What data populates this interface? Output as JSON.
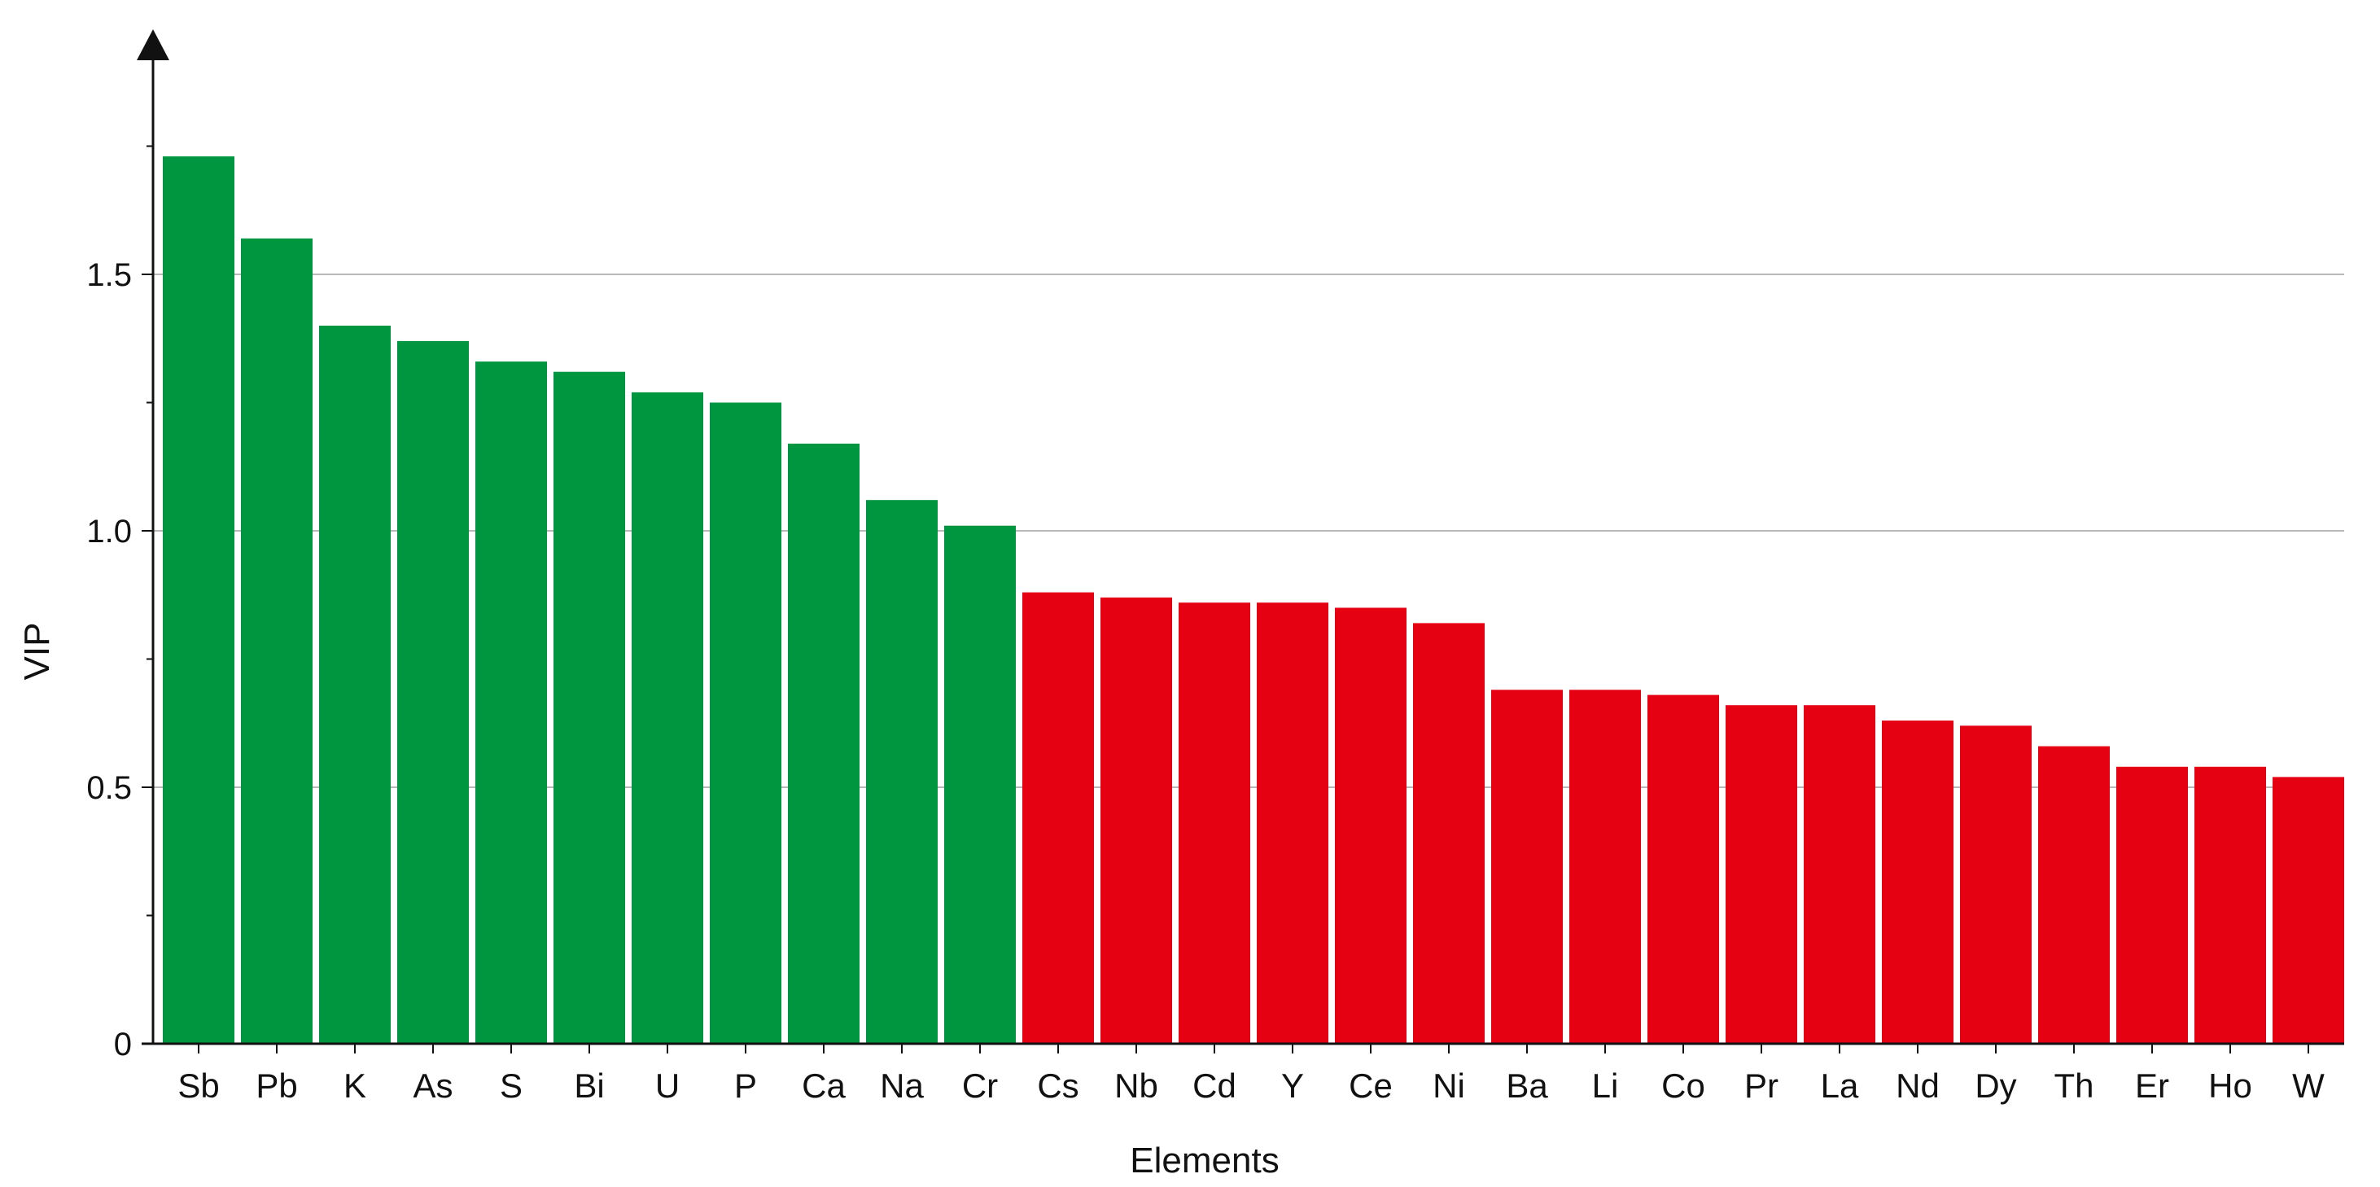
{
  "chart_data": {
    "type": "bar",
    "categories": [
      "Sb",
      "Pb",
      "K",
      "As",
      "S",
      "Bi",
      "U",
      "P",
      "Ca",
      "Na",
      "Cr",
      "Cs",
      "Nb",
      "Cd",
      "Y",
      "Ce",
      "Ni",
      "Ba",
      "Li",
      "Co",
      "Pr",
      "La",
      "Nd",
      "Dy",
      "Th",
      "Er",
      "Ho",
      "W"
    ],
    "values": [
      1.73,
      1.57,
      1.4,
      1.37,
      1.33,
      1.31,
      1.27,
      1.25,
      1.17,
      1.06,
      1.01,
      0.88,
      0.87,
      0.86,
      0.86,
      0.85,
      0.82,
      0.69,
      0.69,
      0.68,
      0.66,
      0.66,
      0.63,
      0.62,
      0.58,
      0.54,
      0.54,
      0.52
    ],
    "bar_colors": [
      "#00963f",
      "#00963f",
      "#00963f",
      "#00963f",
      "#00963f",
      "#00963f",
      "#00963f",
      "#00963f",
      "#00963f",
      "#00963f",
      "#00963f",
      "#e50012",
      "#e50012",
      "#e50012",
      "#e50012",
      "#e50012",
      "#e50012",
      "#e50012",
      "#e50012",
      "#e50012",
      "#e50012",
      "#e50012",
      "#e50012",
      "#e50012",
      "#e50012",
      "#e50012",
      "#e50012",
      "#e50012"
    ],
    "title": "",
    "xlabel": "Elements",
    "ylabel": "VIP",
    "ylim": [
      0,
      2.0
    ],
    "yticks": [
      0,
      0.5,
      1.0,
      1.5
    ],
    "ytick_labels": [
      "0",
      "0.5",
      "1.0",
      "1.5"
    ],
    "grid": true,
    "grid_color": "#b8b8b8",
    "axis_color": "#111111"
  }
}
